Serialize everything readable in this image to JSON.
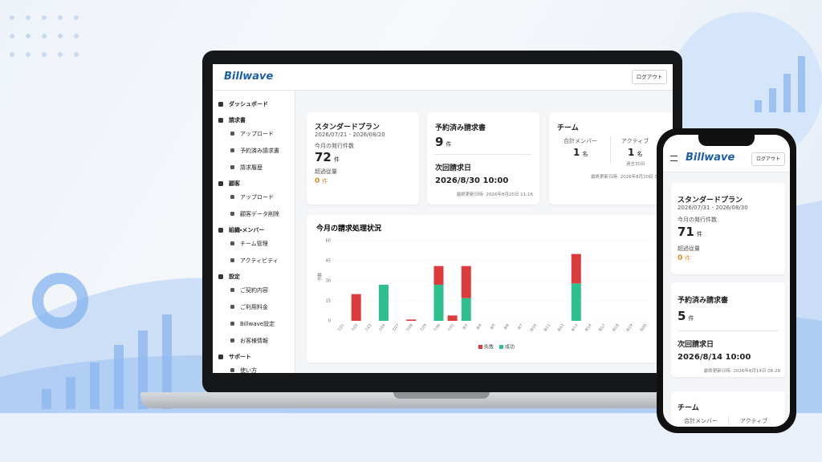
{
  "laptop": {
    "logo": "Billwave",
    "logout": "ログアウト",
    "nav": [
      {
        "label": "ダッシュボード",
        "items": []
      },
      {
        "label": "請求書",
        "items": [
          "アップロード",
          "予約済み請求書",
          "請求履歴"
        ]
      },
      {
        "label": "顧客",
        "items": [
          "アップロード",
          "顧客データ削除"
        ]
      },
      {
        "label": "組織・メンバー",
        "items": [
          "チーム管理",
          "アクティビティ"
        ]
      },
      {
        "label": "設定",
        "items": [
          "ご契約内容",
          "ご利用料金",
          "Billwave設定",
          "お客様情報"
        ]
      },
      {
        "label": "サポート",
        "items": [
          "使い方"
        ]
      }
    ],
    "plan_card": {
      "title": "スタンダードプラン",
      "period": "2026/07/21 - 2026/08/20",
      "issued_label": "今月の発行件数",
      "issued": 72,
      "issued_unit": "件",
      "overage_label": "超過従量",
      "overage": 0,
      "overage_unit": "件"
    },
    "scheduled_card": {
      "title": "予約済み請求書",
      "count": 9,
      "unit": "件",
      "next_label": "次回請求日",
      "next": "2026/8/30 10:00",
      "updated": "最終更新日時: 2026年8月20日 11:16"
    },
    "team_card": {
      "title": "チーム",
      "members_label": "合計メンバー",
      "members": 1,
      "members_unit": "名",
      "active_label": "アクティブ",
      "active": 1,
      "active_unit": "名",
      "active_note": "過去30日",
      "updated": "最終更新日時: 2026年8月20日 06"
    }
  },
  "chart_data": {
    "type": "bar",
    "stacked": true,
    "title": "今月の請求処理状況",
    "y_label": "件数",
    "categories": [
      "7/21",
      "7/22",
      "7/23",
      "7/24",
      "7/27",
      "7/28",
      "7/29",
      "7/30",
      "7/31",
      "8/3",
      "8/4",
      "8/5",
      "8/6",
      "8/7",
      "8/10",
      "8/11",
      "8/12",
      "8/13",
      "8/14",
      "8/17",
      "8/18",
      "8/19",
      "8/20"
    ],
    "series": [
      {
        "name": "失敗",
        "color": "#dc3b3b",
        "values": [
          0,
          20,
          0,
          0,
          0,
          1,
          0,
          14,
          4,
          24,
          0,
          0,
          0,
          0,
          0,
          0,
          0,
          22,
          0,
          0,
          0,
          0,
          0
        ]
      },
      {
        "name": "成功",
        "color": "#2fbf8c",
        "values": [
          0,
          0,
          0,
          27,
          0,
          0,
          0,
          27,
          0,
          17,
          0,
          0,
          0,
          0,
          0,
          0,
          0,
          28,
          0,
          0,
          0,
          0,
          0
        ]
      }
    ],
    "ylim": [
      0,
      60
    ],
    "yticks": [
      0,
      15,
      30,
      45,
      60
    ],
    "grid": true,
    "legend": "bottom"
  },
  "phone": {
    "logo": "Billwave",
    "logout": "ログアウト",
    "plan_card": {
      "title": "スタンダードプラン",
      "period": "2026/07/31 - 2026/08/30",
      "issued_label": "今月の発行件数",
      "issued": 71,
      "issued_unit": "件",
      "overage_label": "超過従量",
      "overage": 0,
      "overage_unit": "件"
    },
    "scheduled_card": {
      "title": "予約済み請求書",
      "count": 5,
      "unit": "件",
      "next_label": "次回請求日",
      "next": "2026/8/14 10:00",
      "updated": "最終更新日時: 2026年8月14日 08:28"
    },
    "team_card": {
      "title": "チーム",
      "members_label": "合計メンバー",
      "active_label": "アクティブ"
    }
  }
}
